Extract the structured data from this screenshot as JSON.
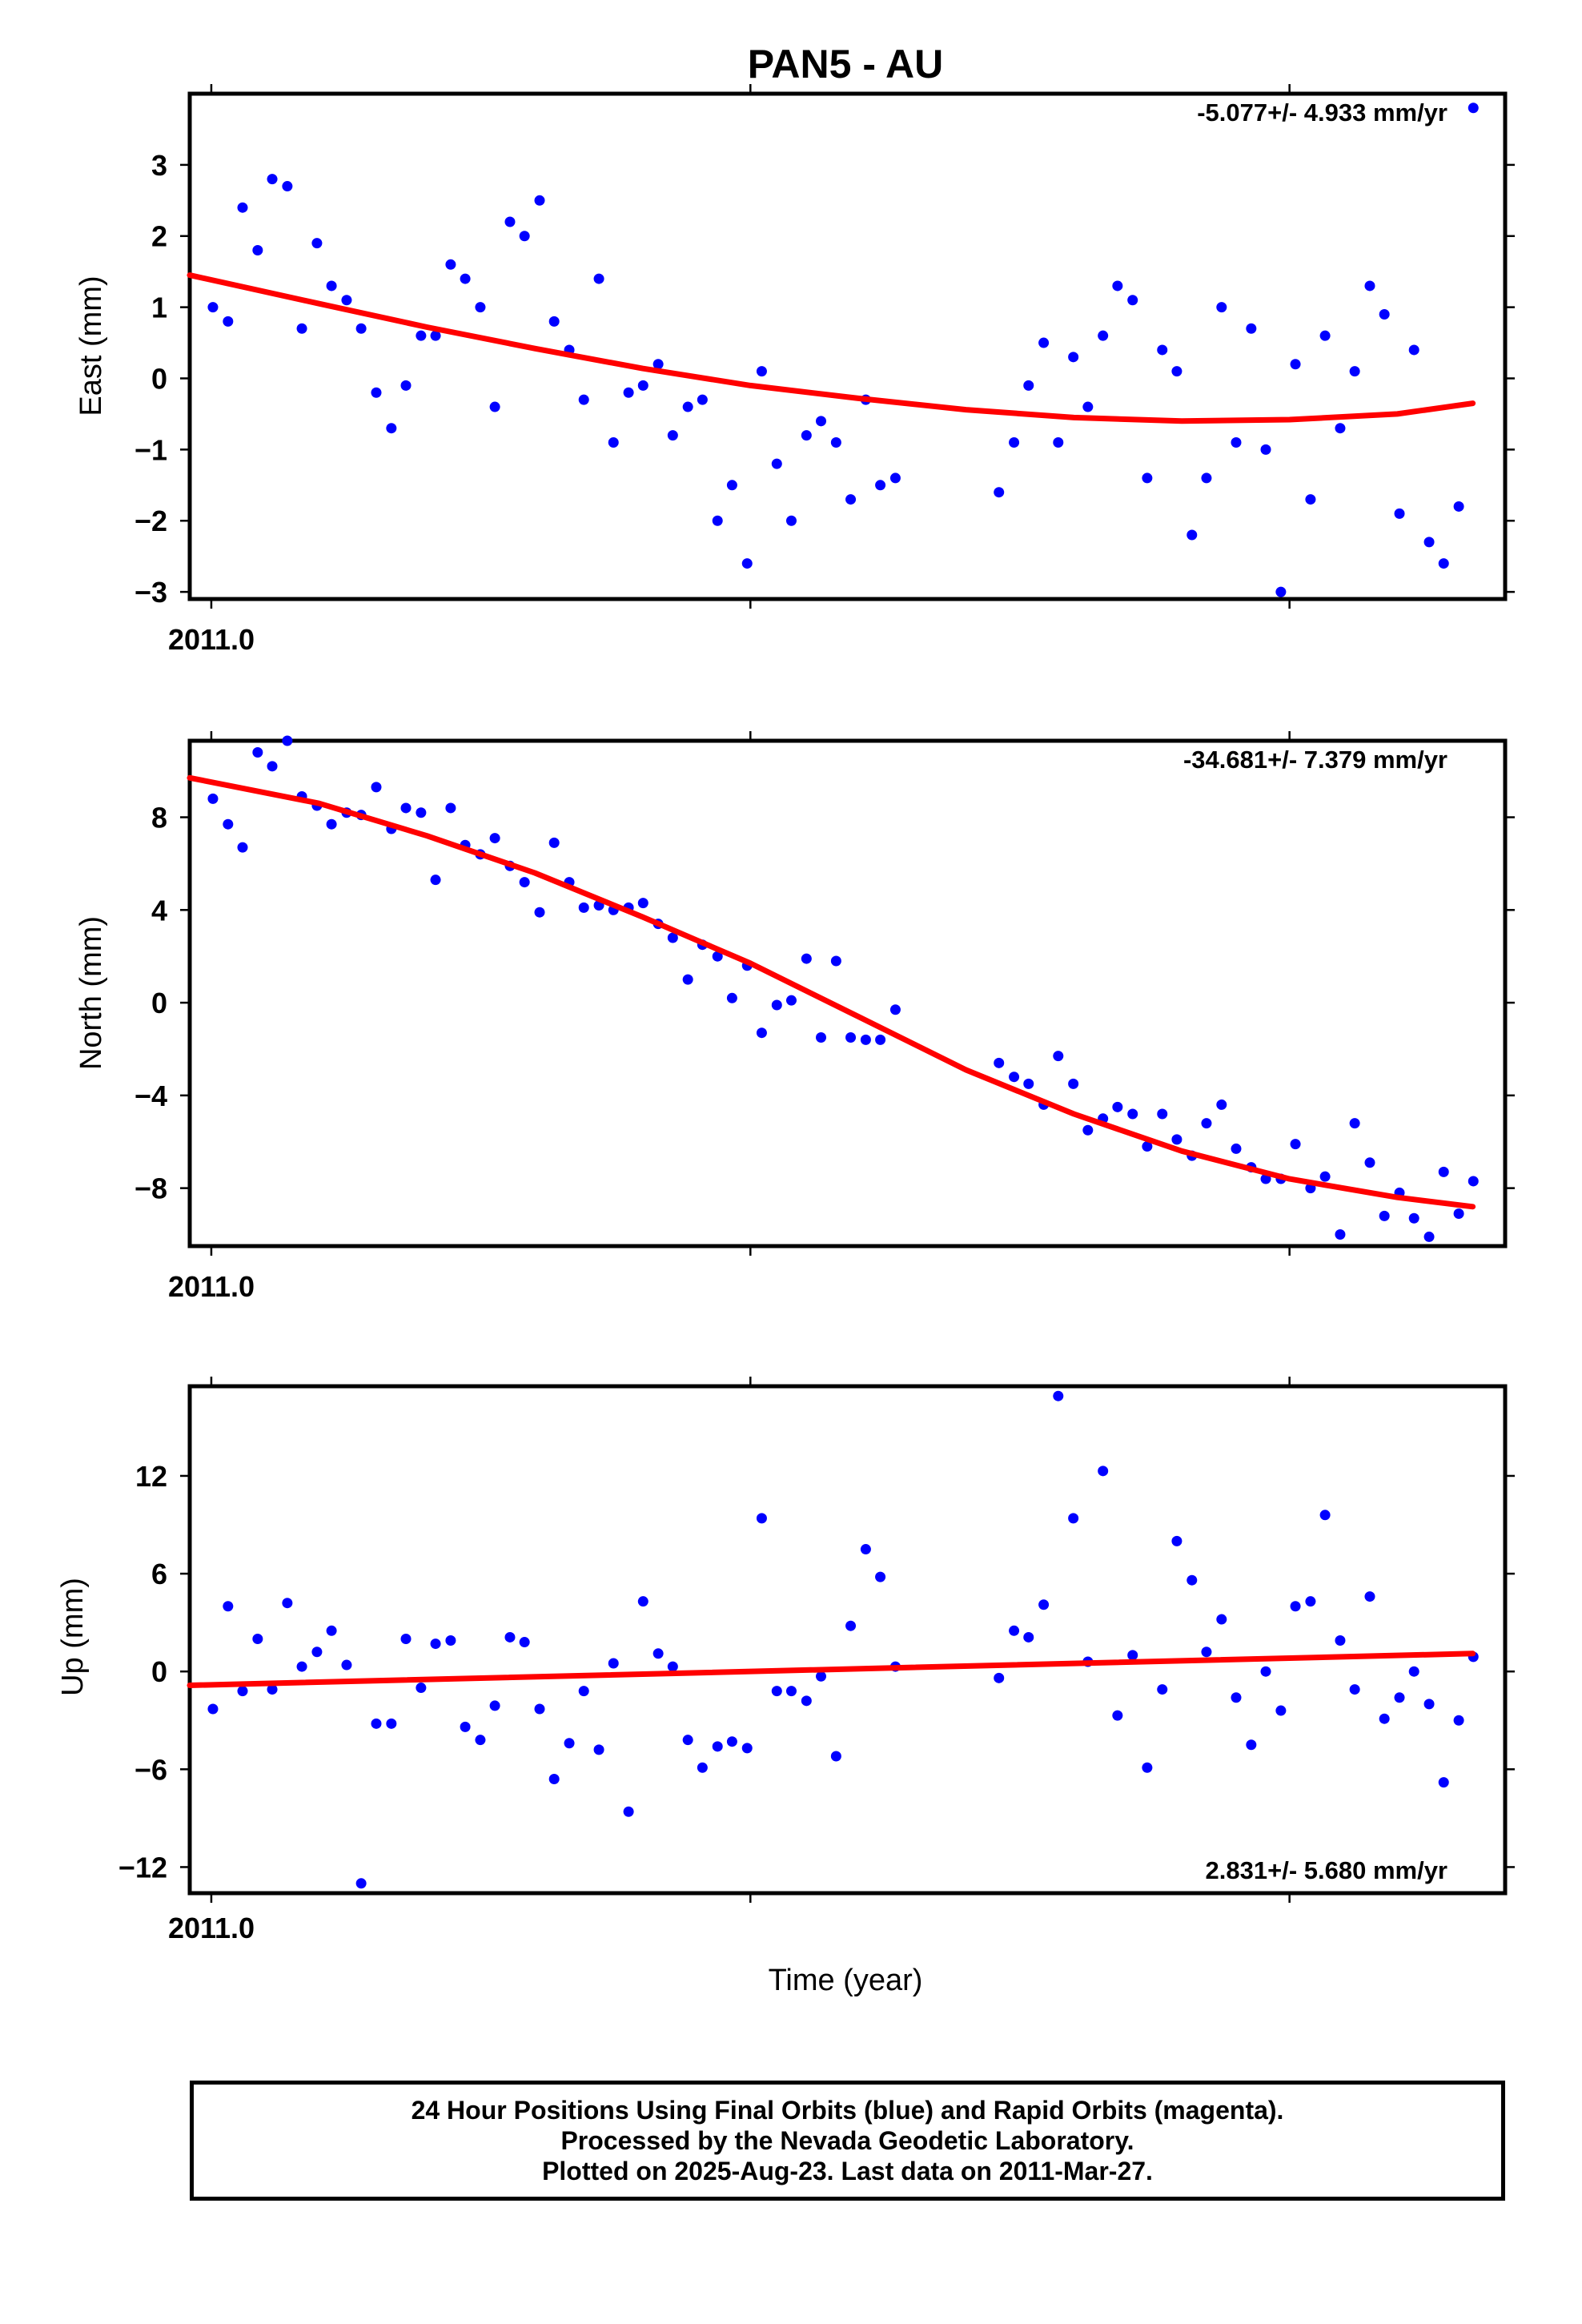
{
  "title": "PAN5 - AU",
  "x_axis_label": "Time (year)",
  "footer": {
    "line1": "24 Hour Positions Using Final Orbits (blue) and Rapid Orbits (magenta).",
    "line2": "Processed by the Nevada Geodetic Laboratory.",
    "line3": "Plotted on 2025-Aug-23. Last data on 2011-Mar-27."
  },
  "colors": {
    "points_final": "#0000ff",
    "fit_line": "#ff0000"
  },
  "chart_data": [
    {
      "type": "scatter",
      "name": "east",
      "ylabel": "East (mm)",
      "xlabel": "",
      "x_tick_label": "2011.0",
      "x_tick_labels": [
        "2011.0",
        "",
        ""
      ],
      "rate": "-5.077+/- 4.933 mm/yr",
      "rate_position": "top-right",
      "xlim": [
        2010.996,
        2011.24
      ],
      "ylim": [
        -3.1,
        4.0
      ],
      "yticks": [
        3,
        2,
        1,
        0,
        -1,
        -2,
        -3
      ],
      "ytick_labels": [
        "3",
        "2",
        "1",
        "0",
        "−1",
        "−2",
        "−3"
      ],
      "xticks": [
        2011.0,
        2011.1,
        2011.2
      ],
      "grid": false,
      "x": [
        2011.0003,
        2011.0031,
        2011.0058,
        2011.0086,
        2011.0113,
        2011.0141,
        2011.0168,
        2011.0196,
        2011.0223,
        2011.0251,
        2011.0278,
        2011.0306,
        2011.0334,
        2011.0361,
        2011.0389,
        2011.0416,
        2011.0444,
        2011.0471,
        2011.0499,
        2011.0526,
        2011.0554,
        2011.0581,
        2011.0609,
        2011.0636,
        2011.0664,
        2011.0691,
        2011.0719,
        2011.0746,
        2011.0774,
        2011.0801,
        2011.0829,
        2011.0856,
        2011.0884,
        2011.0911,
        2011.0939,
        2011.0966,
        2011.0994,
        2011.1021,
        2011.1049,
        2011.1076,
        2011.1104,
        2011.1131,
        2011.1159,
        2011.1186,
        2011.1214,
        2011.1241,
        2011.1269,
        2011.1461,
        2011.1489,
        2011.1516,
        2011.1544,
        2011.1571,
        2011.1599,
        2011.1626,
        2011.1654,
        2011.1681,
        2011.1709,
        2011.1736,
        2011.1764,
        2011.1791,
        2011.1819,
        2011.1846,
        2011.1874,
        2011.1901,
        2011.1929,
        2011.1956,
        2011.1984,
        2011.2011,
        2011.2039,
        2011.2066,
        2011.2094,
        2011.2121,
        2011.2149,
        2011.2176,
        2011.2204,
        2011.2231,
        2011.2259,
        2011.2286,
        2011.2314,
        2011.2341
      ],
      "y": [
        1.0,
        0.8,
        2.4,
        1.8,
        2.8,
        2.7,
        0.7,
        1.9,
        1.3,
        1.1,
        0.7,
        -0.2,
        -0.7,
        -0.1,
        0.6,
        0.6,
        1.6,
        1.4,
        1.0,
        -0.4,
        2.2,
        2.0,
        2.5,
        0.8,
        0.4,
        -0.3,
        1.4,
        -0.9,
        -0.2,
        -0.1,
        0.2,
        -0.8,
        -0.4,
        -0.3,
        -2.0,
        -1.5,
        -2.6,
        0.1,
        -1.2,
        -2.0,
        -0.8,
        -0.6,
        -0.9,
        -1.7,
        -0.3,
        -1.5,
        -1.4,
        -1.6,
        -0.9,
        -0.1,
        0.5,
        -0.9,
        0.3,
        -0.4,
        0.6,
        1.3,
        1.1,
        -1.4,
        0.4,
        0.1,
        -2.2,
        -1.4,
        1.0,
        -0.9,
        0.7,
        -1.0,
        -3.0,
        0.2,
        -1.7,
        0.6,
        -0.7,
        0.1,
        1.3,
        0.9,
        -1.9,
        0.4,
        -2.3,
        -2.6,
        -1.8,
        3.8
      ],
      "fit": {
        "x": [
          2010.996,
          2011.02,
          2011.04,
          2011.06,
          2011.08,
          2011.1,
          2011.12,
          2011.14,
          2011.16,
          2011.18,
          2011.2,
          2011.22,
          2011.234
        ],
        "y": [
          1.45,
          1.05,
          0.72,
          0.42,
          0.14,
          -0.1,
          -0.28,
          -0.44,
          -0.55,
          -0.6,
          -0.58,
          -0.5,
          -0.35
        ]
      }
    },
    {
      "type": "scatter",
      "name": "north",
      "ylabel": "North (mm)",
      "xlabel": "",
      "x_tick_label": "2011.0",
      "x_tick_labels": [
        "2011.0",
        "",
        ""
      ],
      "rate": "-34.681+/- 7.379 mm/yr",
      "rate_position": "top-right",
      "xlim": [
        2010.996,
        2011.24
      ],
      "ylim": [
        -10.5,
        11.3
      ],
      "yticks": [
        8,
        4,
        0,
        -4,
        -8
      ],
      "ytick_labels": [
        "8",
        "4",
        "0",
        "−4",
        "−8"
      ],
      "xticks": [
        2011.0,
        2011.1,
        2011.2
      ],
      "grid": false,
      "x": [
        2011.0003,
        2011.0031,
        2011.0058,
        2011.0086,
        2011.0113,
        2011.0141,
        2011.0168,
        2011.0196,
        2011.0223,
        2011.0251,
        2011.0278,
        2011.0306,
        2011.0334,
        2011.0361,
        2011.0389,
        2011.0416,
        2011.0444,
        2011.0471,
        2011.0499,
        2011.0526,
        2011.0554,
        2011.0581,
        2011.0609,
        2011.0636,
        2011.0664,
        2011.0691,
        2011.0719,
        2011.0746,
        2011.0774,
        2011.0801,
        2011.0829,
        2011.0856,
        2011.0884,
        2011.0911,
        2011.0939,
        2011.0966,
        2011.0994,
        2011.1021,
        2011.1049,
        2011.1076,
        2011.1104,
        2011.1131,
        2011.1159,
        2011.1186,
        2011.1214,
        2011.1241,
        2011.1269,
        2011.1461,
        2011.1489,
        2011.1516,
        2011.1544,
        2011.1571,
        2011.1599,
        2011.1626,
        2011.1654,
        2011.1681,
        2011.1709,
        2011.1736,
        2011.1764,
        2011.1791,
        2011.1819,
        2011.1846,
        2011.1874,
        2011.1901,
        2011.1929,
        2011.1956,
        2011.1984,
        2011.2011,
        2011.2039,
        2011.2066,
        2011.2094,
        2011.2121,
        2011.2149,
        2011.2176,
        2011.2204,
        2011.2231,
        2011.2259,
        2011.2286,
        2011.2314,
        2011.2341
      ],
      "y": [
        8.8,
        7.7,
        6.7,
        10.8,
        10.2,
        11.3,
        8.9,
        8.5,
        7.7,
        8.2,
        8.1,
        9.3,
        7.5,
        8.4,
        8.2,
        5.3,
        8.4,
        6.8,
        6.4,
        7.1,
        5.9,
        5.2,
        3.9,
        6.9,
        5.2,
        4.1,
        4.2,
        4.0,
        4.1,
        4.3,
        3.4,
        2.8,
        1.0,
        2.5,
        2.0,
        0.2,
        1.6,
        -1.3,
        -0.1,
        0.1,
        1.9,
        -1.5,
        1.8,
        -1.5,
        -1.6,
        -1.6,
        -0.3,
        -2.6,
        -3.2,
        -3.5,
        -4.4,
        -2.3,
        -3.5,
        -5.5,
        -5.0,
        -4.5,
        -4.8,
        -6.2,
        -4.8,
        -5.9,
        -6.6,
        -5.2,
        -4.4,
        -6.3,
        -7.1,
        -7.6,
        -7.6,
        -6.1,
        -8.0,
        -7.5,
        -10.0,
        -5.2,
        -6.9,
        -9.2,
        -8.2,
        -9.3,
        -10.1,
        -7.3,
        -9.1,
        -7.7
      ],
      "fit": {
        "x": [
          2010.996,
          2011.02,
          2011.04,
          2011.06,
          2011.08,
          2011.1,
          2011.12,
          2011.14,
          2011.16,
          2011.18,
          2011.2,
          2011.22,
          2011.234
        ],
        "y": [
          9.7,
          8.6,
          7.2,
          5.6,
          3.7,
          1.7,
          -0.6,
          -2.9,
          -4.8,
          -6.4,
          -7.6,
          -8.4,
          -8.8
        ]
      }
    },
    {
      "type": "scatter",
      "name": "up",
      "ylabel": "Up (mm)",
      "xlabel": "Time (year)",
      "x_tick_label": "2011.0",
      "x_tick_labels": [
        "2011.0",
        "",
        ""
      ],
      "rate": "2.831+/- 5.680 mm/yr",
      "rate_position": "bottom-right",
      "xlim": [
        2010.996,
        2011.24
      ],
      "ylim": [
        -13.6,
        17.5
      ],
      "yticks": [
        12,
        6,
        0,
        -6,
        -12
      ],
      "ytick_labels": [
        "12",
        "6",
        "0",
        "−6",
        "−12"
      ],
      "xticks": [
        2011.0,
        2011.1,
        2011.2
      ],
      "grid": false,
      "x": [
        2011.0003,
        2011.0031,
        2011.0058,
        2011.0086,
        2011.0113,
        2011.0141,
        2011.0168,
        2011.0196,
        2011.0223,
        2011.0251,
        2011.0278,
        2011.0306,
        2011.0334,
        2011.0361,
        2011.0389,
        2011.0416,
        2011.0444,
        2011.0471,
        2011.0499,
        2011.0526,
        2011.0554,
        2011.0581,
        2011.0609,
        2011.0636,
        2011.0664,
        2011.0691,
        2011.0719,
        2011.0746,
        2011.0774,
        2011.0801,
        2011.0829,
        2011.0856,
        2011.0884,
        2011.0911,
        2011.0939,
        2011.0966,
        2011.0994,
        2011.1021,
        2011.1049,
        2011.1076,
        2011.1104,
        2011.1131,
        2011.1159,
        2011.1186,
        2011.1214,
        2011.1241,
        2011.1269,
        2011.1461,
        2011.1489,
        2011.1516,
        2011.1544,
        2011.1571,
        2011.1599,
        2011.1626,
        2011.1654,
        2011.1681,
        2011.1709,
        2011.1736,
        2011.1764,
        2011.1791,
        2011.1819,
        2011.1846,
        2011.1874,
        2011.1901,
        2011.1929,
        2011.1956,
        2011.1984,
        2011.2011,
        2011.2039,
        2011.2066,
        2011.2094,
        2011.2121,
        2011.2149,
        2011.2176,
        2011.2204,
        2011.2231,
        2011.2259,
        2011.2286,
        2011.2314,
        2011.2341
      ],
      "y": [
        -2.3,
        4.0,
        -1.2,
        2.0,
        -1.1,
        4.2,
        0.3,
        1.2,
        2.5,
        0.4,
        -13.0,
        -3.2,
        -3.2,
        2.0,
        -1.0,
        1.7,
        1.9,
        -3.4,
        -4.2,
        -2.1,
        2.1,
        1.8,
        -2.3,
        -6.6,
        -4.4,
        -1.2,
        -4.8,
        0.5,
        -8.6,
        4.3,
        1.1,
        0.3,
        -4.2,
        -5.9,
        -4.6,
        -4.3,
        -4.7,
        9.4,
        -1.2,
        -1.2,
        -1.8,
        -0.3,
        -5.2,
        2.8,
        7.5,
        5.8,
        0.3,
        -0.4,
        2.5,
        2.1,
        4.1,
        16.9,
        9.4,
        0.6,
        12.3,
        -2.7,
        1.0,
        -5.9,
        -1.1,
        8.0,
        5.6,
        1.2,
        3.2,
        -1.6,
        -4.5,
        0.0,
        -2.4,
        4.0,
        4.3,
        9.6,
        1.9,
        -1.1,
        4.6,
        -2.9,
        -1.6,
        0.0,
        -2.0,
        -6.8,
        -3.0,
        0.9
      ],
      "fit": {
        "x": [
          2010.996,
          2011.234
        ],
        "y": [
          -0.85,
          1.1
        ]
      }
    }
  ]
}
